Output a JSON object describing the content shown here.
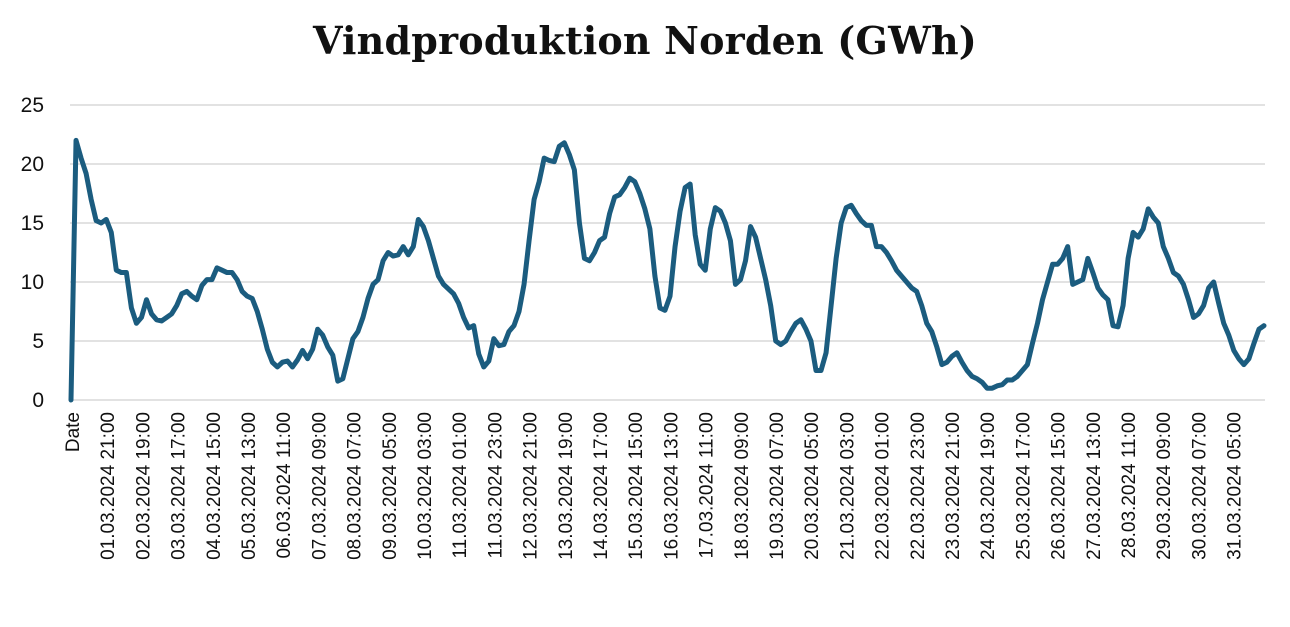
{
  "chart_data": {
    "type": "line",
    "title": "Vindproduktion Norden (GWh)",
    "xlabel": "",
    "ylabel": "",
    "ylim": [
      0,
      25
    ],
    "yticks": [
      0,
      5,
      10,
      15,
      20,
      25
    ],
    "grid": true,
    "legend": "none",
    "colors": {
      "line": "#1b5c7f",
      "grid": "#d9d9d9",
      "text": "#111111"
    },
    "x_tick_labels": [
      "Date",
      "01.03.2024 21:00",
      "02.03.2024 19:00",
      "03.03.2024 17:00",
      "04.03.2024 15:00",
      "05.03.2024 13:00",
      "06.03.2024 11:00",
      "07.03.2024 09:00",
      "08.03.2024 07:00",
      "09.03.2024 05:00",
      "10.03.2024 03:00",
      "11.03.2024 01:00",
      "11.03.2024 23:00",
      "12.03.2024 21:00",
      "13.03.2024 19:00",
      "14.03.2024 17:00",
      "15.03.2024 15:00",
      "16.03.2024 13:00",
      "17.03.2024 11:00",
      "18.03.2024 09:00",
      "19.03.2024 07:00",
      "20.03.2024 05:00",
      "21.03.2024 03:00",
      "22.03.2024 01:00",
      "22.03.2024 23:00",
      "23.03.2024 21:00",
      "24.03.2024 19:00",
      "25.03.2024 17:00",
      "26.03.2024 15:00",
      "27.03.2024 13:00",
      "28.03.2024 11:00",
      "29.03.2024 09:00",
      "30.03.2024 07:00",
      "31.03.2024 05:00"
    ],
    "series": [
      {
        "values": [
          0,
          22.0,
          20.5,
          19.2,
          17.0,
          15.2,
          15.0,
          15.3,
          14.2,
          11.0,
          10.8,
          10.8,
          7.8,
          6.5,
          7.0,
          8.5,
          7.3,
          6.8,
          6.7,
          7.0,
          7.3,
          8.0,
          9.0,
          9.2,
          8.8,
          8.5,
          9.7,
          10.2,
          10.2,
          11.2,
          11.0,
          10.8,
          10.8,
          10.2,
          9.2,
          8.8,
          8.6,
          7.5,
          6.0,
          4.3,
          3.2,
          2.8,
          3.2,
          3.3,
          2.8,
          3.4,
          4.2,
          3.5,
          4.3,
          6.0,
          5.5,
          4.5,
          3.8,
          1.6,
          1.8,
          3.5,
          5.2,
          5.8,
          7.0,
          8.6,
          9.8,
          10.2,
          11.8,
          12.5,
          12.2,
          12.3,
          13.0,
          12.3,
          13.0,
          15.3,
          14.7,
          13.5,
          12.0,
          10.5,
          9.8,
          9.4,
          9.0,
          8.2,
          7.0,
          6.1,
          6.3,
          3.9,
          2.8,
          3.3,
          5.2,
          4.6,
          4.7,
          5.8,
          6.3,
          7.5,
          9.8,
          13.5,
          17.0,
          18.5,
          20.5,
          20.3,
          20.2,
          21.5,
          21.8,
          20.8,
          19.5,
          15.0,
          12.0,
          11.8,
          12.5,
          13.5,
          13.8,
          15.8,
          17.2,
          17.4,
          18.0,
          18.8,
          18.5,
          17.5,
          16.2,
          14.5,
          10.5,
          7.8,
          7.6,
          8.8,
          13.0,
          16.0,
          18.0,
          18.3,
          14.0,
          11.5,
          11.0,
          14.5,
          16.3,
          16.0,
          15.0,
          13.5,
          9.8,
          10.2,
          11.8,
          14.7,
          13.8,
          12.0,
          10.2,
          8.0,
          5.0,
          4.7,
          5.0,
          5.8,
          6.5,
          6.8,
          6.0,
          5.0,
          2.5,
          2.5,
          4.0,
          8.0,
          12.0,
          15.0,
          16.3,
          16.5,
          15.8,
          15.2,
          14.8,
          14.8,
          13.0,
          13.0,
          12.5,
          11.8,
          11.0,
          10.5,
          10.0,
          9.5,
          9.2,
          8.0,
          6.5,
          5.8,
          4.5,
          3.0,
          3.2,
          3.7,
          4.0,
          3.2,
          2.5,
          2.0,
          1.8,
          1.5,
          1.0,
          1.0,
          1.2,
          1.3,
          1.7,
          1.7,
          2.0,
          2.5,
          3.0,
          4.8,
          6.5,
          8.5,
          10.0,
          11.5,
          11.5,
          12.0,
          13.0,
          9.8,
          10.0,
          10.2,
          12.0,
          10.8,
          9.5,
          8.9,
          8.5,
          6.3,
          6.2,
          8.0,
          12.0,
          14.2,
          13.8,
          14.5,
          16.2,
          15.5,
          15.0,
          13.0,
          12.0,
          10.8,
          10.5,
          9.8,
          8.5,
          7.0,
          7.3,
          8.0,
          9.5,
          10.0,
          8.2,
          6.5,
          5.5,
          4.2,
          3.5,
          3.0,
          3.5,
          4.8,
          6.0,
          6.3
        ]
      }
    ]
  }
}
